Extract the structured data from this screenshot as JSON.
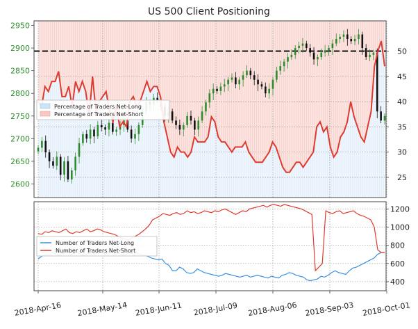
{
  "chart_data": [
    {
      "type": "candlestick-with-lines",
      "title": "US 500 Client Positioning",
      "x_ticks": [
        "2018-Apr-16",
        "2018-May-14",
        "2018-Jun-11",
        "2018-Jul-09",
        "2018-Aug-06",
        "2018-Sep-03",
        "2018-Oct-01"
      ],
      "left_axis": {
        "ticks": [
          2600,
          2650,
          2700,
          2750,
          2800,
          2850,
          2900,
          2950
        ],
        "ylim": [
          2570,
          2960
        ],
        "color": "#2e8b2e"
      },
      "right_axis": {
        "ticks": [
          25,
          30,
          35,
          40,
          45,
          50
        ],
        "ylim": [
          21,
          56
        ]
      },
      "reference_line": {
        "value": 50,
        "style": "dashed",
        "color": "#111111"
      },
      "price": {
        "close": [
          2680,
          2695,
          2670,
          2650,
          2640,
          2660,
          2620,
          2650,
          2610,
          2630,
          2660,
          2690,
          2710,
          2700,
          2720,
          2705,
          2730,
          2725,
          2720,
          2735,
          2715,
          2720,
          2730,
          2740,
          2720,
          2700,
          2710,
          2730,
          2760,
          2780,
          2775,
          2790,
          2785,
          2770,
          2750,
          2760,
          2740,
          2730,
          2720,
          2730,
          2750,
          2740,
          2720,
          2740,
          2760,
          2780,
          2800,
          2810,
          2805,
          2815,
          2820,
          2830,
          2835,
          2820,
          2830,
          2840,
          2850,
          2840,
          2830,
          2820,
          2815,
          2800,
          2810,
          2830,
          2850,
          2860,
          2870,
          2880,
          2885,
          2900,
          2905,
          2910,
          2900,
          2890,
          2875,
          2880,
          2890,
          2895,
          2900,
          2910,
          2920,
          2925,
          2930,
          2920,
          2915,
          2920,
          2930,
          2900,
          2880,
          2885,
          2890,
          2760,
          2740,
          2750
        ],
        "color_up": "#2e8b2e",
        "color_down": "#111111"
      },
      "series": [
        {
          "name": "Percentage of Traders Net-Long",
          "axis": "right",
          "fill": true,
          "fill_color": "#cfe3f6",
          "fill_region": "below",
          "color": "#9ec7ee"
        },
        {
          "name": "Percentage of Traders Net-Short",
          "axis": "right",
          "color": "#e03a2e",
          "fill_color": "#f8c8c4",
          "fill_region": "above",
          "values": [
            40,
            39,
            43,
            42,
            44,
            44,
            46,
            41,
            41,
            43,
            39,
            44,
            42,
            44,
            42,
            37,
            45,
            38,
            40,
            41,
            42,
            38,
            36,
            39,
            35,
            36,
            35,
            40,
            41,
            39,
            40,
            42,
            44,
            42,
            43,
            43,
            41,
            36,
            33,
            30,
            29,
            31,
            30,
            30,
            29,
            30,
            33,
            32,
            32,
            32,
            33,
            37,
            36,
            33,
            32,
            32,
            31,
            30,
            31,
            31,
            31,
            32,
            30,
            29,
            28,
            28,
            28,
            29,
            30,
            32,
            31,
            29,
            27,
            26,
            26,
            27,
            28,
            28,
            27,
            28,
            29,
            30,
            35,
            36,
            34,
            35,
            31,
            29,
            30,
            33,
            34,
            36,
            40,
            37,
            35,
            33,
            32,
            35,
            38,
            47,
            50,
            52,
            47
          ]
        }
      ],
      "legend": {
        "placement": "left",
        "entries": [
          "Percentage of Traders Net-Long",
          "Percentage of Traders Net-Short"
        ]
      }
    },
    {
      "type": "line",
      "x_ticks": [
        "2018-Apr-16",
        "2018-May-14",
        "2018-Jun-11",
        "2018-Jul-09",
        "2018-Aug-06",
        "2018-Sep-03",
        "2018-Oct-01"
      ],
      "right_axis": {
        "ticks": [
          400,
          600,
          800,
          1000,
          1200
        ],
        "ylim": [
          300,
          1280
        ]
      },
      "series": [
        {
          "name": "Number of Traders Net-Long",
          "color": "#3a8fe0",
          "values": [
            650,
            680,
            700,
            690,
            720,
            700,
            690,
            710,
            740,
            700,
            710,
            720,
            700,
            690,
            710,
            720,
            700,
            730,
            720,
            700,
            740,
            720,
            700,
            710,
            690,
            700,
            720,
            690,
            710,
            700,
            690,
            680,
            660,
            650,
            640,
            650,
            600,
            580,
            520,
            520,
            560,
            540,
            500,
            490,
            500,
            540,
            520,
            500,
            490,
            480,
            470,
            460,
            470,
            490,
            480,
            470,
            460,
            450,
            460,
            470,
            450,
            460,
            470,
            460,
            450,
            440,
            460,
            450,
            440,
            470,
            480,
            500,
            490,
            470,
            460,
            450,
            420,
            410,
            420,
            430,
            460,
            450,
            470,
            500,
            520,
            500,
            490,
            480,
            520,
            550,
            560,
            580,
            600,
            620,
            640,
            660,
            700,
            720,
            720
          ]
        },
        {
          "name": "Number of Traders Net-Short",
          "color": "#e03a2e",
          "values": [
            930,
            920,
            950,
            940,
            960,
            950,
            940,
            960,
            980,
            940,
            930,
            950,
            940,
            960,
            980,
            950,
            960,
            980,
            970,
            950,
            940,
            930,
            920,
            900,
            880,
            870,
            860,
            880,
            900,
            920,
            950,
            980,
            1020,
            1080,
            1100,
            1120,
            1150,
            1140,
            1130,
            1150,
            1160,
            1140,
            1150,
            1180,
            1160,
            1170,
            1150,
            1160,
            1180,
            1170,
            1160,
            1180,
            1170,
            1190,
            1200,
            1180,
            1160,
            1140,
            1160,
            1180,
            1170,
            1200,
            1210,
            1220,
            1230,
            1240,
            1220,
            1240,
            1250,
            1240,
            1230,
            1250,
            1240,
            1230,
            1220,
            1210,
            1200,
            1180,
            1160,
            1140,
            520,
            560,
            600,
            1180,
            1160,
            1150,
            1170,
            1180,
            1150,
            1160,
            1170,
            1180,
            1150,
            1130,
            1120,
            1100,
            1080,
            1000,
            750,
            720,
            720
          ]
        }
      ],
      "legend": {
        "placement": "left",
        "entries": [
          "Number of Traders Net-Long",
          "Number of Traders Net-Short"
        ]
      }
    }
  ]
}
